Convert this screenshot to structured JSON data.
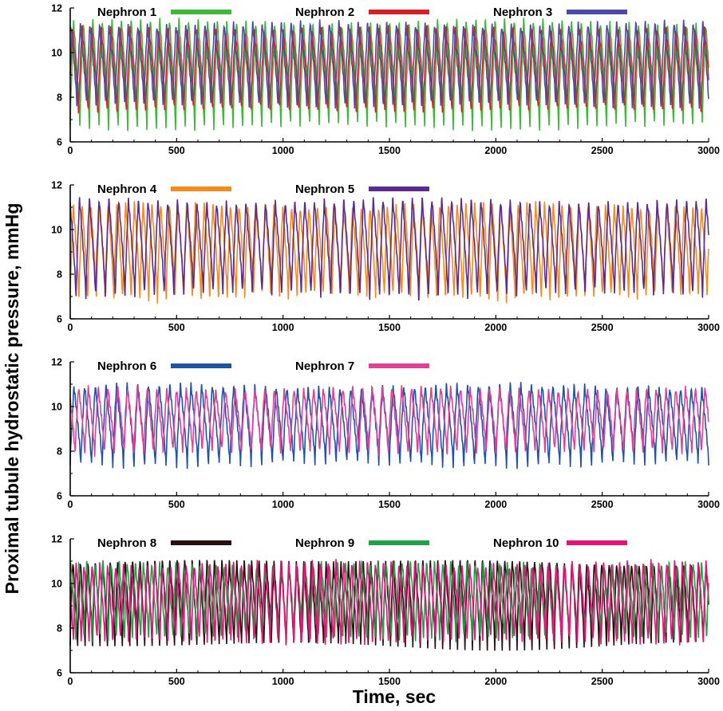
{
  "figure": {
    "ylabel": "Proximal tubule hydrostatic pressure, mmHg",
    "xlabel": "Time, sec"
  },
  "chart_data": [
    {
      "type": "line",
      "panel": 1,
      "xlim": [
        0,
        3000
      ],
      "ylim": [
        6,
        12
      ],
      "xticks": [
        0,
        500,
        1000,
        1500,
        2000,
        2500,
        3000
      ],
      "yticks": [
        6,
        8,
        10,
        12
      ],
      "series": [
        {
          "name": "Nephron 1",
          "color": "#3db83a",
          "period_sec": 45,
          "min": 6.7,
          "max": 11.4,
          "phase": 0.0
        },
        {
          "name": "Nephron 2",
          "color": "#d62027",
          "period_sec": 45,
          "min": 7.3,
          "max": 11.1,
          "phase": 0.12
        },
        {
          "name": "Nephron 3",
          "color": "#4b4aa6",
          "period_sec": 45,
          "min": 7.6,
          "max": 11.3,
          "phase": 0.3
        }
      ]
    },
    {
      "type": "line",
      "panel": 2,
      "xlim": [
        0,
        3000
      ],
      "ylim": [
        6,
        12
      ],
      "xticks": [
        0,
        500,
        1000,
        1500,
        2000,
        2500,
        3000
      ],
      "yticks": [
        6,
        8,
        10,
        12
      ],
      "series": [
        {
          "name": "Nephron 4",
          "color": "#f28c1e",
          "period_sec": 41,
          "min": 6.9,
          "max": 11.1,
          "phase": 0.0
        },
        {
          "name": "Nephron 5",
          "color": "#5b2b8f",
          "period_sec": 46,
          "min": 7.0,
          "max": 11.3,
          "phase": 0.4
        }
      ]
    },
    {
      "type": "line",
      "panel": 3,
      "xlim": [
        0,
        3000
      ],
      "ylim": [
        6,
        12
      ],
      "xticks": [
        0,
        500,
        1000,
        1500,
        2000,
        2500,
        3000
      ],
      "yticks": [
        6,
        8,
        10,
        12
      ],
      "series": [
        {
          "name": "Nephron 6",
          "color": "#1f54a5",
          "period_sec": 50,
          "min": 7.4,
          "max": 10.9,
          "phase": 0.0
        },
        {
          "name": "Nephron 7",
          "color": "#e0409a",
          "period_sec": 46,
          "min": 7.9,
          "max": 10.8,
          "phase": 0.5
        }
      ]
    },
    {
      "type": "line",
      "panel": 4,
      "xlim": [
        0,
        3000
      ],
      "ylim": [
        6,
        12
      ],
      "xticks": [
        0,
        500,
        1000,
        1500,
        2000,
        2500,
        3000
      ],
      "yticks": [
        6,
        8,
        10,
        12
      ],
      "series": [
        {
          "name": "Nephron 8",
          "color": "#2a0f0f",
          "period_sec": 35,
          "min": 7.2,
          "max": 11.0,
          "phase": 0.0
        },
        {
          "name": "Nephron 9",
          "color": "#22a04a",
          "period_sec": 38,
          "min": 7.5,
          "max": 10.9,
          "phase": 0.3
        },
        {
          "name": "Nephron 10",
          "color": "#e3147a",
          "period_sec": 37,
          "min": 7.3,
          "max": 10.9,
          "phase": 0.6
        }
      ]
    }
  ]
}
